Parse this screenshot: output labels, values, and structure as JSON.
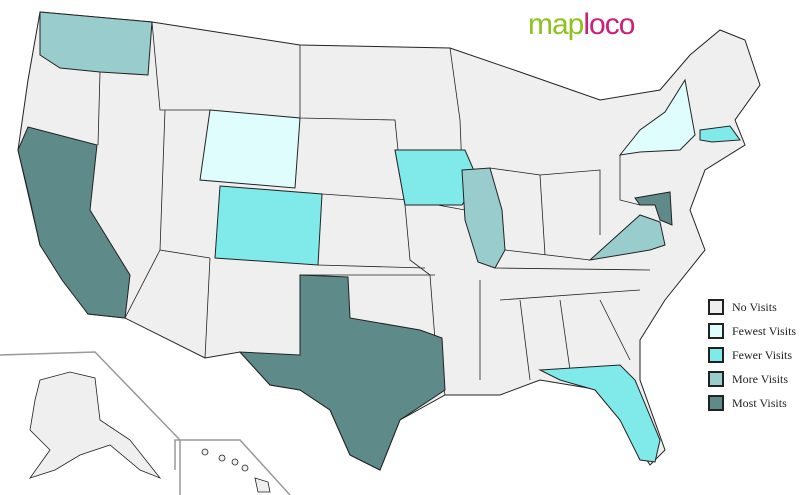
{
  "logo": {
    "part1": "map",
    "part2": "loco"
  },
  "legend": [
    {
      "label": "No Visits",
      "color": "#efefef"
    },
    {
      "label": "Fewest Visits",
      "color": "#e0fdfd"
    },
    {
      "label": "Fewer Visits",
      "color": "#80eaea"
    },
    {
      "label": "More Visits",
      "color": "#99cccc"
    },
    {
      "label": "Most Visits",
      "color": "#5f8a8a"
    }
  ],
  "state_visits": {
    "WA": "More Visits",
    "IL": "More Visits",
    "VA": "More Visits",
    "WY": "Fewest Visits",
    "NY": "Fewest Visits",
    "CO": "Fewer Visits",
    "IA": "Fewer Visits",
    "FL": "Fewer Visits",
    "MA": "Fewer Visits",
    "CA": "Most Visits",
    "TX": "Most Visits",
    "MD": "Most Visits"
  }
}
